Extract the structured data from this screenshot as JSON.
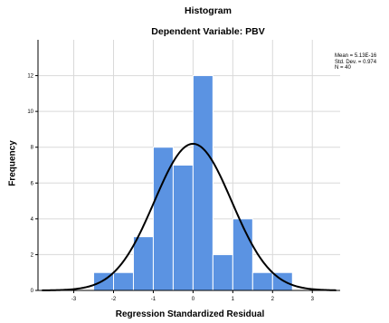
{
  "chart_data": {
    "type": "bar",
    "title": "Histogram",
    "subtitle": "Dependent Variable: PBV",
    "xlabel": "Regression Standardized Residual",
    "ylabel": "Frequency",
    "xlim": [
      -3.9,
      3.7
    ],
    "ylim": [
      0,
      14
    ],
    "x_ticks": [
      -3,
      -2,
      -1,
      0,
      1,
      2,
      3
    ],
    "x_tick_labels": [
      "-3",
      "-2",
      "-1",
      "0",
      "1",
      "2",
      "3"
    ],
    "y_ticks": [
      0,
      2,
      4,
      6,
      8,
      10,
      12
    ],
    "y_tick_labels": [
      "0",
      "2",
      "4",
      "6",
      "8",
      "10",
      "12"
    ],
    "bin_width": 0.5,
    "bins": [
      {
        "start": -2.5,
        "end": -2.0,
        "value": 1
      },
      {
        "start": -2.0,
        "end": -1.5,
        "value": 1
      },
      {
        "start": -1.5,
        "end": -1.0,
        "value": 3
      },
      {
        "start": -1.0,
        "end": -0.5,
        "value": 8
      },
      {
        "start": -0.5,
        "end": 0.0,
        "value": 7
      },
      {
        "start": 0.0,
        "end": 0.5,
        "value": 12
      },
      {
        "start": 0.5,
        "end": 1.0,
        "value": 2
      },
      {
        "start": 1.0,
        "end": 1.5,
        "value": 4
      },
      {
        "start": 1.5,
        "end": 2.0,
        "value": 1
      },
      {
        "start": 2.0,
        "end": 2.5,
        "value": 1
      }
    ],
    "normal_curve": {
      "mean": 0.0,
      "std": 0.974,
      "n": 40
    },
    "grid": true,
    "bar_color": "#5b93e2",
    "bar_edge_color": "#ffffff",
    "curve_color": "#000000",
    "stats": {
      "mean_text": "Mean = 5.13E-16",
      "std_text": "Std. Dev. = 0.974",
      "n_text": "N = 40"
    }
  }
}
